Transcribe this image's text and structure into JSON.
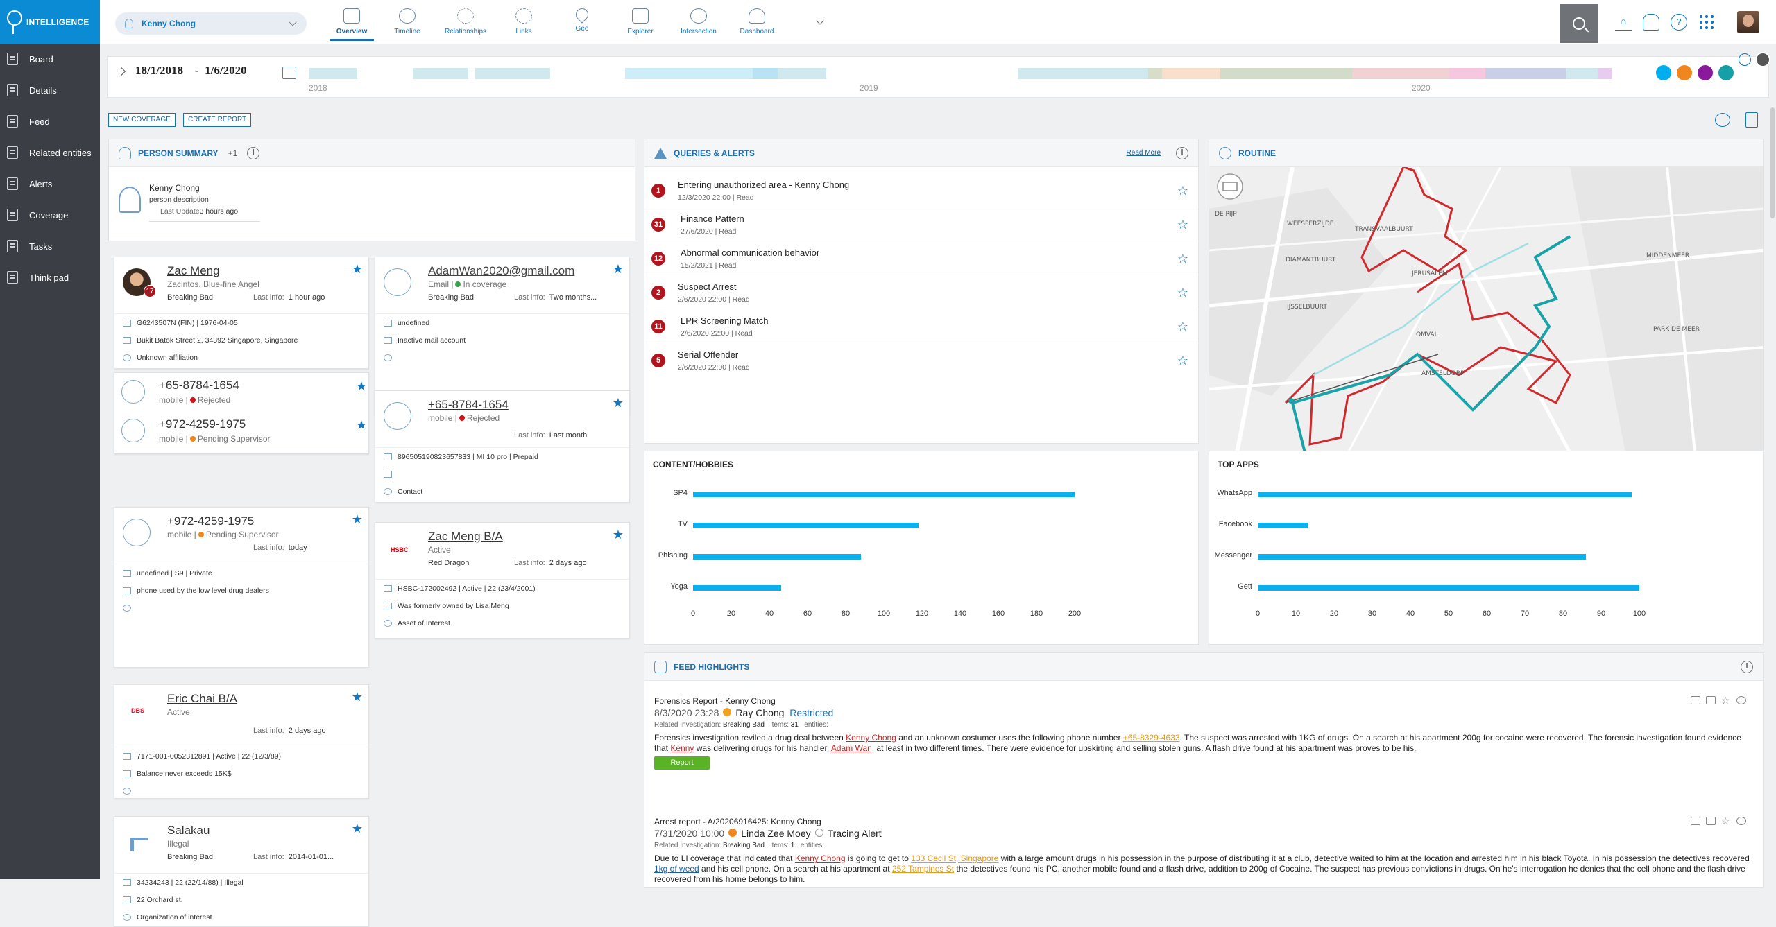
{
  "app": {
    "logo_text": "INTELLIGENCE"
  },
  "sidebar": {
    "items": [
      {
        "label": "Board",
        "icon": "board-icon"
      },
      {
        "label": "Details",
        "icon": "details-icon"
      },
      {
        "label": "Feed",
        "icon": "feed-icon"
      },
      {
        "label": "Related entities",
        "icon": "related-entities-icon"
      },
      {
        "label": "Alerts",
        "icon": "alerts-icon"
      },
      {
        "label": "Coverage",
        "icon": "coverage-icon"
      },
      {
        "label": "Tasks",
        "icon": "tasks-icon"
      },
      {
        "label": "Think pad",
        "icon": "think-pad-icon"
      }
    ]
  },
  "header": {
    "person_selector": "Kenny Chong",
    "nav": [
      {
        "label": "Overview",
        "active": true
      },
      {
        "label": "Timeline"
      },
      {
        "label": "Relationships"
      },
      {
        "label": "Links"
      },
      {
        "label": "Geo"
      },
      {
        "label": "Explorer"
      },
      {
        "label": "Intersection"
      },
      {
        "label": "Dashboard"
      }
    ]
  },
  "timeline": {
    "start": "18/1/2018",
    "sep": "-",
    "end": "1/6/2020",
    "years": [
      "2018",
      "2019",
      "2020"
    ],
    "segment_colors": [
      "#cfe9ee",
      "#ffffff",
      "#cfe9ee",
      "#ffffff",
      "#cfe9ee",
      "#ffffff",
      "#cdeef8",
      "#b9e3f3",
      "#cfe9ee",
      "#ffffff",
      "#cfe9ee",
      "#d8ddc8",
      "#f8e0cc",
      "#d3dcc9",
      "#f0d2d4",
      "#f5c8e0",
      "#c9cfe6",
      "#cfe9ee",
      "#e7ccf0"
    ],
    "filter_colors": [
      "#00aeef",
      "#f0861e",
      "#8a1a9b",
      "#14a0a6"
    ]
  },
  "actions": {
    "new_coverage": "NEW COVERAGE",
    "create_report": "CREATE REPORT"
  },
  "person_summary": {
    "title": "PERSON SUMMARY",
    "plus": "+1",
    "name": "Kenny Chong",
    "description": "person description",
    "last_update_label": "Last Update",
    "last_update_value": "3 hours ago"
  },
  "cards": {
    "zac": {
      "name": "Zac Meng",
      "alias": "Zacintos, Blue-fine Angel",
      "investigation": "Breaking Bad",
      "last_info_label": "Last info:",
      "last_info": "1 hour ago",
      "badge": "17",
      "rows": [
        "G6243507N (FIN) | 1976-04-05",
        "Bukit Batok Street 2, 34392 Singapore, Singapore",
        "Unknown affiliation"
      ]
    },
    "phones1": [
      {
        "number": "+65-8784-1654",
        "type": "mobile |",
        "status": "Rejected",
        "status_color": "#d0141c"
      },
      {
        "number": "+972-4259-1975",
        "type": "mobile |",
        "status": "Pending Supervisor",
        "status_color": "#f0861e"
      }
    ],
    "phone2": {
      "number": "+972-4259-1975",
      "type": "mobile |",
      "status": "Pending Supervisor",
      "last_info_label": "Last info:",
      "last_info": "today",
      "rows": [
        "undefined | S9 | Private",
        "phone used by the low level drug dealers"
      ]
    },
    "eric": {
      "name": "Eric Chai B/A",
      "status": "Active",
      "bank_logo": "DBS",
      "last_info_label": "Last info:",
      "last_info": "2 days ago",
      "rows": [
        "7171-001-0052312891 | Active | 22 (12/3/89)",
        "Balance never exceeds 15K$"
      ]
    },
    "salakau": {
      "name": "Salakau",
      "status": "Illegal",
      "investigation": "Breaking Bad",
      "last_info_label": "Last info:",
      "last_info": "2014-01-01...",
      "rows": [
        "34234243 | 22 (22/14/88) | Illegal",
        "22 Orchard st.",
        "Organization of interest"
      ]
    },
    "email": {
      "name": "AdamWan2020@gmail.com",
      "type": "Email |",
      "status": "In coverage",
      "investigation": "Breaking Bad",
      "last_info_label": "Last info:",
      "last_info": "Two months...",
      "rows": [
        "undefined",
        "Inactive mail account"
      ]
    },
    "phone3": {
      "number": "+65-8784-1654",
      "type": "mobile |",
      "status": "Rejected",
      "last_info_label": "Last info:",
      "last_info": "Last month",
      "rows": [
        "896505190823657833 | MI 10 pro | Prepaid",
        "",
        "Contact"
      ]
    },
    "zacba": {
      "name": "Zac Meng B/A",
      "status": "Active",
      "bank": "Red Dragon",
      "bank_logo": "HSBC",
      "last_info_label": "Last info:",
      "last_info": "2 days ago",
      "rows": [
        "HSBC-172002492 | Active | 22 (23/4/2001)",
        "Was formerly owned by Lisa Meng",
        "Asset of Interest"
      ]
    }
  },
  "queries": {
    "title": "QUERIES & ALERTS",
    "read_more": "Read More",
    "items": [
      {
        "count": "1",
        "title": "Entering unauthorized area - Kenny Chong",
        "date": "12/3/2020 22:00 | Read"
      },
      {
        "count": "31",
        "title": "Finance Pattern",
        "date": "27/6/2020 | Read"
      },
      {
        "count": "12",
        "title": "Abnormal communication behavior",
        "date": "15/2/2021 | Read"
      },
      {
        "count": "2",
        "title": "Suspect Arrest",
        "date": "2/6/2020 22:00 | Read"
      },
      {
        "count": "11",
        "title": "LPR Screening Match",
        "date": "2/6/2020 22:00 | Read"
      },
      {
        "count": "5",
        "title": "Serial Offender",
        "date": "2/6/2020 22:00 | Read"
      }
    ]
  },
  "routine": {
    "title": "ROUTINE",
    "map_labels": [
      "WEESPERZIJDE",
      "TRANSVAALBUURT",
      "DIAMANTBUURT",
      "JERUSALEM",
      "MIDDENMEER",
      "IJSSELBUURT",
      "OMVAL",
      "PARK DE MEER",
      "AMSTELDORP",
      "DE PIJP"
    ]
  },
  "chart_data": [
    {
      "type": "bar",
      "title": "CONTENT/HOBBIES",
      "categories": [
        "SP4",
        "TV",
        "Phishing",
        "Yoga"
      ],
      "values": [
        200,
        118,
        88,
        46
      ],
      "xlim": [
        0,
        200
      ],
      "xticks": [
        "0",
        "20",
        "40",
        "60",
        "80",
        "100",
        "120",
        "140",
        "160",
        "180",
        "200"
      ]
    },
    {
      "type": "bar",
      "title": "TOP APPS",
      "categories": [
        "WhatsApp",
        "Facebook",
        "Messenger",
        "Gett"
      ],
      "values": [
        98,
        13,
        86,
        100
      ],
      "xlim": [
        0,
        100
      ],
      "xticks": [
        "0",
        "10",
        "20",
        "30",
        "40",
        "50",
        "60",
        "70",
        "80",
        "90",
        "100"
      ]
    }
  ],
  "feed": {
    "title": "FEED HIGHLIGHTS",
    "items": [
      {
        "title": "Forensics Report - Kenny Chong",
        "datetime": "8/3/2020 23:28",
        "author": "Ray Chong",
        "tag": "Restricted",
        "meta_label": "Related Investigation:",
        "meta_inv": "Breaking Bad",
        "meta_items_label": "items:",
        "meta_items": "31",
        "meta_entities": "entities:",
        "text": [
          "Forensics investigation reviled a drug deal between ",
          "Kenny Chong",
          " and an unknown costumer uses the following phone number ",
          "+65-8329-4633",
          ". The suspect was arrested with 1KG of drugs. On a search at his apartment 200g for cocaine were recovered. The forensic investigation found evidence that ",
          "Kenny",
          " was delivering drugs for his handler, ",
          "Adam Wan",
          ", at least in two different times. There were evidence for upskirting and selling stolen guns. A flash drive found at his apartment was proves to be his."
        ],
        "button": "Report"
      },
      {
        "title": "Arrest report - A/20206916425: Kenny Chong",
        "datetime": "7/31/2020 10:00",
        "author": "Linda Zee Moey",
        "tag": "Tracing Alert",
        "meta_label": "Related Investigation:",
        "meta_inv": "Breaking Bad",
        "meta_items_label": "items:",
        "meta_items": "1",
        "meta_entities": "entities:",
        "text": [
          "Due to LI coverage that indicated that ",
          "Kenny Chong",
          " is going to get to ",
          "133 Cecil St, Singapore",
          " with a large amount drugs in his possession in the purpose of distributing it at a club, detective waited to him at the location and arrested him in his black Toyota. In his possession the detectives recovered ",
          "1kg of weed",
          " and his cell phone. On a search at his apartment at ",
          "252 Tampines St",
          " the detectives found his PC, another mobile found and a flash drive, addition to 200g of Cocaine. The suspect has previous convictions in drugs. On he's interrogation he denies that the cell phone and the flash drive recovered from his home belongs to him."
        ]
      }
    ]
  }
}
